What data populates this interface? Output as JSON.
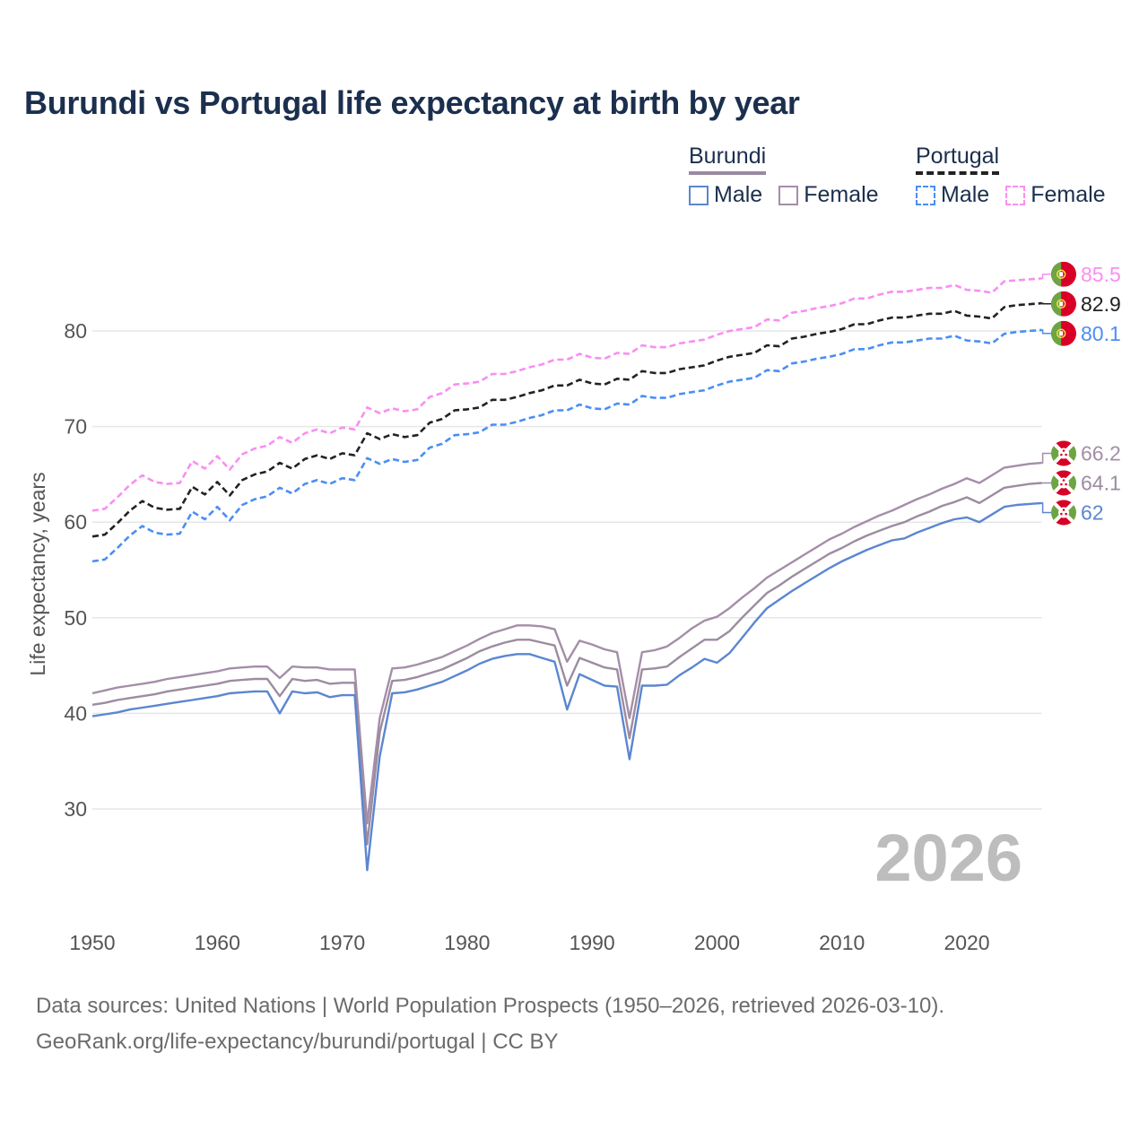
{
  "title": "Burundi vs Portugal life expectancy at birth by year",
  "legend": {
    "groups": [
      {
        "name": "Burundi",
        "underline_color": "#9a8aa0",
        "underline_style": "solid",
        "items": [
          {
            "label": "Male",
            "color": "#5b86d1",
            "style": "solid"
          },
          {
            "label": "Female",
            "color": "#a48ea8",
            "style": "solid"
          }
        ]
      },
      {
        "name": "Portugal",
        "underline_color": "#222222",
        "underline_style": "dashed",
        "items": [
          {
            "label": "Male",
            "color": "#4a8ef5",
            "style": "dashed"
          },
          {
            "label": "Female",
            "color": "#f98ef2",
            "style": "dashed"
          }
        ]
      }
    ]
  },
  "watermark_year": "2026",
  "footer": {
    "line1": "Data sources: United Nations | World Population Prospects (1950–2026, retrieved 2026-03-10).",
    "line2": "GeoRank.org/life-expectancy/burundi/portugal | CC BY"
  },
  "chart_data": {
    "type": "line",
    "title": "Burundi vs Portugal life expectancy at birth by year",
    "xlabel": "",
    "ylabel": "Life expectancy, years",
    "xlim": [
      1950,
      2026
    ],
    "ylim": [
      20,
      90
    ],
    "xticks": [
      1950,
      1960,
      1970,
      1980,
      1990,
      2000,
      2010,
      2020
    ],
    "yticks": [
      30,
      40,
      50,
      60,
      70,
      80
    ],
    "grid": true,
    "x_start": 1950,
    "series": [
      {
        "name": "Portugal Female",
        "country": "Portugal",
        "color": "#f98ef2",
        "dashed": true,
        "end_label": "85.5",
        "flag": "portugal",
        "values": [
          61.2,
          61.4,
          62.6,
          63.9,
          64.9,
          64.2,
          64.0,
          64.1,
          66.4,
          65.6,
          66.9,
          65.5,
          67.1,
          67.7,
          68.0,
          68.9,
          68.3,
          69.3,
          69.7,
          69.3,
          69.9,
          69.7,
          72.0,
          71.4,
          71.9,
          71.6,
          71.8,
          73.1,
          73.5,
          74.4,
          74.5,
          74.7,
          75.5,
          75.5,
          75.8,
          76.2,
          76.5,
          77.0,
          77.0,
          77.6,
          77.2,
          77.1,
          77.7,
          77.6,
          78.5,
          78.3,
          78.3,
          78.7,
          78.9,
          79.1,
          79.6,
          80.0,
          80.2,
          80.4,
          81.2,
          81.1,
          81.9,
          82.1,
          82.4,
          82.6,
          82.9,
          83.4,
          83.4,
          83.8,
          84.1,
          84.1,
          84.3,
          84.5,
          84.5,
          84.8,
          84.3,
          84.2,
          84.0,
          85.2,
          85.3,
          85.4,
          85.5
        ]
      },
      {
        "name": "Portugal Total",
        "country": "Portugal",
        "color": "#222222",
        "dashed": true,
        "end_label": "82.9",
        "flag": "portugal",
        "values": [
          58.5,
          58.7,
          59.9,
          61.2,
          62.2,
          61.5,
          61.3,
          61.4,
          63.7,
          62.9,
          64.2,
          62.8,
          64.4,
          65.0,
          65.3,
          66.2,
          65.6,
          66.6,
          67.0,
          66.6,
          67.2,
          67.0,
          69.3,
          68.7,
          69.2,
          68.9,
          69.1,
          70.4,
          70.8,
          71.7,
          71.8,
          72.0,
          72.8,
          72.8,
          73.1,
          73.5,
          73.8,
          74.3,
          74.3,
          74.9,
          74.5,
          74.4,
          75.0,
          74.9,
          75.8,
          75.6,
          75.6,
          76.0,
          76.2,
          76.4,
          76.9,
          77.3,
          77.5,
          77.7,
          78.5,
          78.4,
          79.2,
          79.4,
          79.7,
          79.9,
          80.2,
          80.7,
          80.7,
          81.1,
          81.4,
          81.4,
          81.6,
          81.8,
          81.8,
          82.1,
          81.6,
          81.5,
          81.3,
          82.5,
          82.7,
          82.8,
          82.9
        ]
      },
      {
        "name": "Portugal Male",
        "country": "Portugal",
        "color": "#4a8ef5",
        "dashed": true,
        "end_label": "80.1",
        "flag": "portugal",
        "values": [
          55.9,
          56.1,
          57.3,
          58.6,
          59.6,
          58.9,
          58.7,
          58.8,
          61.1,
          60.3,
          61.6,
          60.2,
          61.8,
          62.4,
          62.7,
          63.6,
          63.0,
          64.0,
          64.4,
          64.0,
          64.6,
          64.4,
          66.7,
          66.1,
          66.6,
          66.3,
          66.5,
          67.8,
          68.2,
          69.1,
          69.2,
          69.4,
          70.2,
          70.2,
          70.5,
          70.9,
          71.2,
          71.7,
          71.7,
          72.3,
          71.9,
          71.8,
          72.4,
          72.3,
          73.2,
          73.0,
          73.0,
          73.4,
          73.6,
          73.8,
          74.3,
          74.7,
          74.9,
          75.1,
          75.9,
          75.8,
          76.6,
          76.8,
          77.1,
          77.3,
          77.6,
          78.1,
          78.1,
          78.5,
          78.8,
          78.8,
          79.0,
          79.2,
          79.2,
          79.5,
          79.0,
          78.9,
          78.7,
          79.7,
          79.9,
          80.0,
          80.1
        ]
      },
      {
        "name": "Burundi Female",
        "country": "Burundi",
        "color": "#a48ea8",
        "dashed": false,
        "end_label": "66.2",
        "flag": "burundi",
        "values": [
          42.1,
          42.4,
          42.7,
          42.9,
          43.1,
          43.3,
          43.6,
          43.8,
          44.0,
          44.2,
          44.4,
          44.7,
          44.8,
          44.9,
          44.9,
          43.7,
          44.9,
          44.8,
          44.8,
          44.6,
          44.6,
          44.6,
          28.5,
          39.5,
          44.7,
          44.8,
          45.1,
          45.5,
          45.9,
          46.5,
          47.1,
          47.8,
          48.4,
          48.8,
          49.2,
          49.2,
          49.1,
          48.8,
          45.4,
          47.6,
          47.2,
          46.7,
          46.4,
          39.5,
          46.4,
          46.6,
          47.0,
          47.9,
          48.9,
          49.7,
          50.1,
          51.0,
          52.1,
          53.1,
          54.2,
          55.0,
          55.8,
          56.6,
          57.4,
          58.2,
          58.8,
          59.5,
          60.1,
          60.7,
          61.2,
          61.8,
          62.4,
          62.9,
          63.5,
          64.0,
          64.6,
          64.1,
          64.9,
          65.7,
          65.9,
          66.1,
          66.2
        ]
      },
      {
        "name": "Burundi Total",
        "country": "Burundi",
        "color": "#9c8ca0",
        "dashed": false,
        "end_label": "64.1",
        "flag": "burundi",
        "values": [
          40.9,
          41.1,
          41.4,
          41.6,
          41.8,
          42.0,
          42.3,
          42.5,
          42.7,
          42.9,
          43.1,
          43.4,
          43.5,
          43.6,
          43.6,
          41.8,
          43.6,
          43.4,
          43.5,
          43.1,
          43.2,
          43.2,
          26.3,
          38.0,
          43.4,
          43.5,
          43.8,
          44.2,
          44.6,
          45.2,
          45.8,
          46.5,
          47.0,
          47.4,
          47.7,
          47.7,
          47.4,
          47.1,
          42.9,
          45.8,
          45.3,
          44.8,
          44.6,
          37.4,
          44.6,
          44.7,
          44.9,
          45.9,
          46.8,
          47.7,
          47.7,
          48.6,
          50.0,
          51.3,
          52.6,
          53.4,
          54.3,
          55.1,
          55.9,
          56.7,
          57.3,
          58.0,
          58.6,
          59.1,
          59.6,
          60.0,
          60.6,
          61.1,
          61.7,
          62.1,
          62.6,
          62.0,
          62.8,
          63.6,
          63.8,
          64.0,
          64.1
        ]
      },
      {
        "name": "Burundi Male",
        "country": "Burundi",
        "color": "#5b86d1",
        "dashed": false,
        "end_label": "62",
        "flag": "burundi",
        "values": [
          39.7,
          39.9,
          40.1,
          40.4,
          40.6,
          40.8,
          41.0,
          41.2,
          41.4,
          41.6,
          41.8,
          42.1,
          42.2,
          42.3,
          42.3,
          40.0,
          42.3,
          42.1,
          42.2,
          41.7,
          41.9,
          41.9,
          23.6,
          35.5,
          42.1,
          42.2,
          42.5,
          42.9,
          43.3,
          43.9,
          44.5,
          45.2,
          45.7,
          46.0,
          46.2,
          46.2,
          45.8,
          45.4,
          40.4,
          44.1,
          43.5,
          42.9,
          42.8,
          35.2,
          42.9,
          42.9,
          43.0,
          44.0,
          44.8,
          45.7,
          45.3,
          46.3,
          47.9,
          49.5,
          51.0,
          51.9,
          52.8,
          53.6,
          54.4,
          55.2,
          55.9,
          56.5,
          57.1,
          57.6,
          58.1,
          58.3,
          58.9,
          59.4,
          59.9,
          60.3,
          60.5,
          60.0,
          60.8,
          61.6,
          61.8,
          61.9,
          62.0
        ]
      }
    ]
  }
}
